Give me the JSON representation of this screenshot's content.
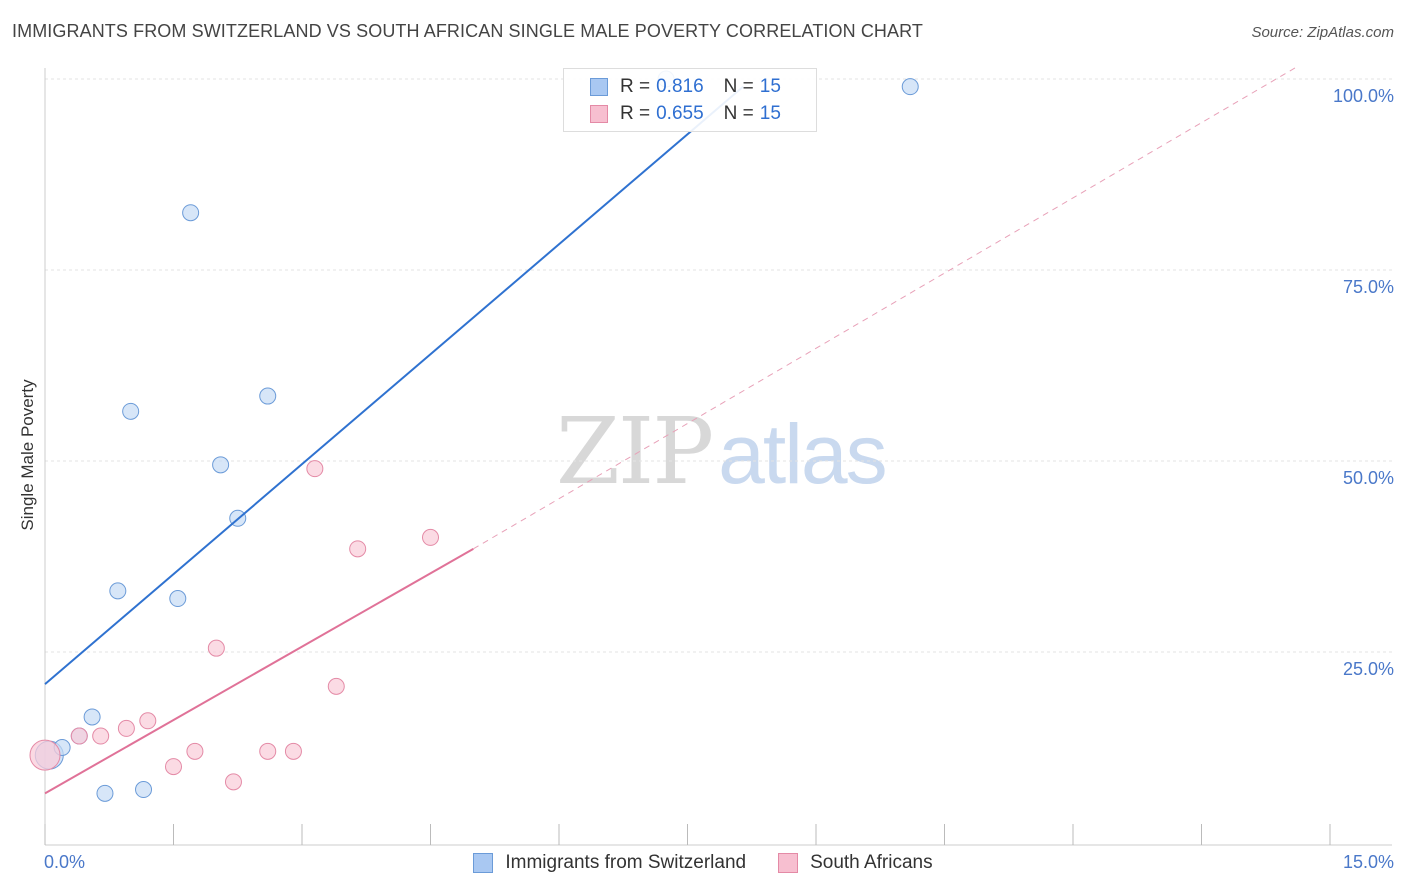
{
  "header": {
    "title": "IMMIGRANTS FROM SWITZERLAND VS SOUTH AFRICAN SINGLE MALE POVERTY CORRELATION CHART",
    "source": "Source: ZipAtlas.com"
  },
  "watermark": {
    "zip": "ZIP",
    "atlas": "atlas"
  },
  "legend": {
    "r_label": "R =",
    "n_label": "N =",
    "rows": [
      {
        "r": "0.816",
        "n": "15",
        "color": "#a9c8f2",
        "border": "#6b9bd8"
      },
      {
        "r": "0.655",
        "n": "15",
        "color": "#f7bfd0",
        "border": "#e48aa6"
      }
    ]
  },
  "bottom_legend": {
    "items": [
      {
        "label": "Immigrants from Switzerland",
        "color": "#a9c8f2",
        "border": "#6b9bd8"
      },
      {
        "label": "South Africans",
        "color": "#f7bfd0",
        "border": "#e48aa6"
      }
    ]
  },
  "chart_data": {
    "type": "scatter",
    "title": "IMMIGRANTS FROM SWITZERLAND VS SOUTH AFRICAN SINGLE MALE POVERTY CORRELATION CHART",
    "xlabel": "",
    "ylabel": "Single Male Poverty",
    "xlim": [
      0,
      15
    ],
    "ylim": [
      0,
      105
    ],
    "x_tick_labels": {
      "left": "0.0%",
      "right": "15.0%"
    },
    "y_ticks": [
      {
        "value": 25,
        "label": "25.0%"
      },
      {
        "value": 50,
        "label": "50.0%"
      },
      {
        "value": 75,
        "label": "75.0%"
      },
      {
        "value": 100,
        "label": "100.0%"
      }
    ],
    "grid": true,
    "legend_position": "top-center",
    "series": [
      {
        "name": "Immigrants from Switzerland",
        "color": "#6b9bd8",
        "fill": "#c6dbf5",
        "points": [
          [
            0.05,
            11.5
          ],
          [
            0.2,
            12.5
          ],
          [
            0.4,
            14.0
          ],
          [
            0.55,
            16.5
          ],
          [
            0.7,
            6.5
          ],
          [
            0.85,
            33.0
          ],
          [
            1.0,
            56.5
          ],
          [
            1.15,
            7.0
          ],
          [
            1.55,
            32.0
          ],
          [
            1.7,
            82.5
          ],
          [
            2.05,
            49.5
          ],
          [
            2.25,
            42.5
          ],
          [
            2.6,
            58.5
          ],
          [
            7.25,
            100.0
          ],
          [
            10.1,
            99.0
          ]
        ],
        "trend": {
          "x": [
            0,
            8.15
          ],
          "y": [
            20.8,
            99.0
          ],
          "color": "#2f72d0"
        }
      },
      {
        "name": "South Africans",
        "color": "#e48aa6",
        "fill": "#f9ccd9",
        "points": [
          [
            0.0,
            11.5
          ],
          [
            0.4,
            14.0
          ],
          [
            0.65,
            14.0
          ],
          [
            0.95,
            15.0
          ],
          [
            1.2,
            16.0
          ],
          [
            1.5,
            10.0
          ],
          [
            1.75,
            12.0
          ],
          [
            2.0,
            25.5
          ],
          [
            2.2,
            8.0
          ],
          [
            2.6,
            12.0
          ],
          [
            2.9,
            12.0
          ],
          [
            3.15,
            49.0
          ],
          [
            3.4,
            20.5
          ],
          [
            3.65,
            38.5
          ],
          [
            4.5,
            40.0
          ]
        ],
        "trend": {
          "x": [
            0,
            5.0
          ],
          "y": [
            6.5,
            38.5
          ],
          "color": "#e07298"
        },
        "trend_dashed": {
          "x": [
            5.0,
            14.6
          ],
          "y": [
            38.5,
            101.5
          ],
          "color": "#e8a1b8"
        }
      }
    ]
  }
}
